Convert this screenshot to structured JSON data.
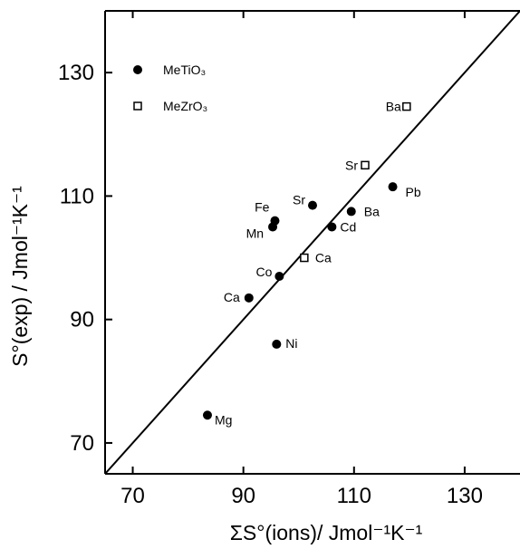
{
  "chart_data": {
    "type": "scatter",
    "xlabel": "ΣS°(ions)/ Jmol⁻¹K⁻¹",
    "ylabel": "S°(exp) / Jmol⁻¹K⁻¹",
    "xlim": [
      65,
      140
    ],
    "ylim": [
      65,
      140
    ],
    "x_ticks": [
      70,
      90,
      110,
      130
    ],
    "y_ticks": [
      70,
      90,
      110,
      130
    ],
    "grid": false,
    "legend_position": "top-left",
    "reference_line": {
      "type": "identity",
      "from": [
        65,
        65
      ],
      "to": [
        140,
        140
      ]
    },
    "series": [
      {
        "name": "MeTiO₃",
        "marker": "filled-circle",
        "points": [
          {
            "label": "Mg",
            "x": 83.5,
            "y": 74.5
          },
          {
            "label": "Ca",
            "x": 91.0,
            "y": 93.5
          },
          {
            "label": "Co",
            "x": 96.5,
            "y": 97.0
          },
          {
            "label": "Ni",
            "x": 96.0,
            "y": 86.0
          },
          {
            "label": "Fe",
            "x": 95.7,
            "y": 106.0
          },
          {
            "label": "Mn",
            "x": 95.3,
            "y": 105.0
          },
          {
            "label": "Sr",
            "x": 102.5,
            "y": 108.5
          },
          {
            "label": "Cd",
            "x": 106.0,
            "y": 105.0
          },
          {
            "label": "Ba",
            "x": 109.5,
            "y": 107.5
          },
          {
            "label": "Pb",
            "x": 117.0,
            "y": 111.5
          }
        ]
      },
      {
        "name": "MeZrO₃",
        "marker": "open-square",
        "points": [
          {
            "label": "Ca",
            "x": 101.0,
            "y": 100.0
          },
          {
            "label": "Sr",
            "x": 112.0,
            "y": 115.0
          },
          {
            "label": "Ba",
            "x": 119.5,
            "y": 124.5
          }
        ]
      }
    ]
  }
}
